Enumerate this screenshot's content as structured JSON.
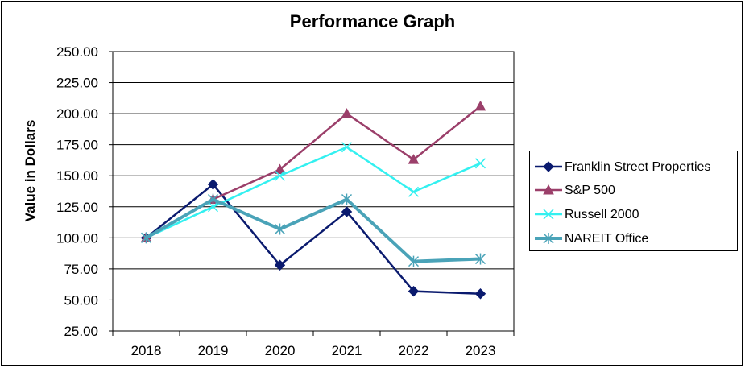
{
  "chart_data": {
    "type": "line",
    "title": "Performance Graph",
    "xlabel": "",
    "ylabel": "Value in Dollars",
    "x": [
      "2018",
      "2019",
      "2020",
      "2021",
      "2022",
      "2023"
    ],
    "ylim": [
      25,
      250
    ],
    "yticks": [
      "25.00",
      "50.00",
      "75.00",
      "100.00",
      "125.00",
      "150.00",
      "175.00",
      "200.00",
      "225.00",
      "250.00"
    ],
    "grid": "horizontal",
    "legend_position": "right",
    "series": [
      {
        "name": "Franklin Street Properties",
        "color": "#0A1A6E",
        "marker": "diamond",
        "values": [
          100,
          143,
          78,
          121,
          57,
          55
        ]
      },
      {
        "name": "S&P 500",
        "color": "#9B3F6A",
        "marker": "triangle",
        "values": [
          100,
          131,
          155,
          200,
          163,
          206
        ]
      },
      {
        "name": "Russell 2000",
        "color": "#33F0F0",
        "marker": "x",
        "values": [
          100,
          125,
          150,
          173,
          137,
          160
        ]
      },
      {
        "name": "NAREIT Office",
        "color": "#4AA3B8",
        "marker": "asterisk",
        "values": [
          100,
          131,
          107,
          131,
          81,
          83
        ]
      }
    ]
  }
}
